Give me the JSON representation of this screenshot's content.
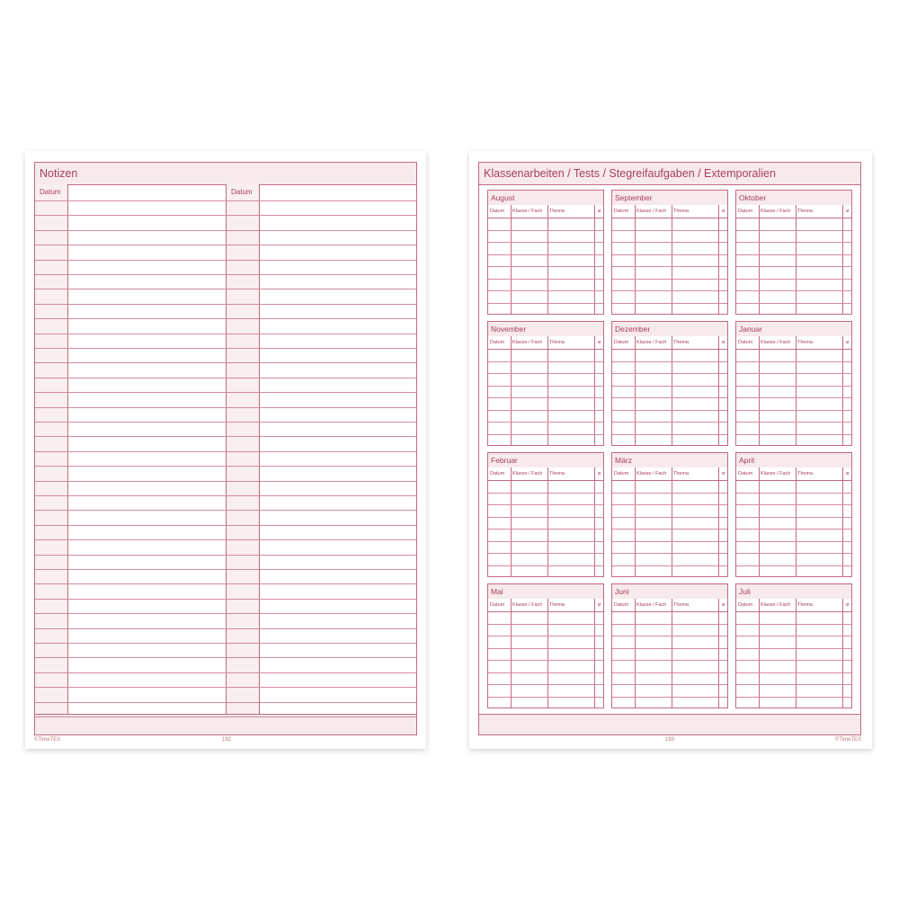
{
  "left_page": {
    "title": "Notizen",
    "col_datum_1": "Datum",
    "col_datum_2": "Datum",
    "copyright": "©TimeTEX",
    "page_number": "192"
  },
  "right_page": {
    "title": "Klassenarbeiten / Tests / Stegreifaufgaben / Extemporalien",
    "columns": {
      "datum": "Datum",
      "klasse": "Klasse / Fach",
      "thema": "Thema",
      "note": "ø"
    },
    "months": [
      "August",
      "September",
      "Oktober",
      "November",
      "Dezember",
      "Januar",
      "Februar",
      "März",
      "April",
      "Mai",
      "Juni",
      "Juli"
    ],
    "copyright": "©TimeTEX",
    "page_number": "193"
  },
  "colors": {
    "line": "#c46a80",
    "fill": "#f7e9ec",
    "text": "#a8405c"
  }
}
